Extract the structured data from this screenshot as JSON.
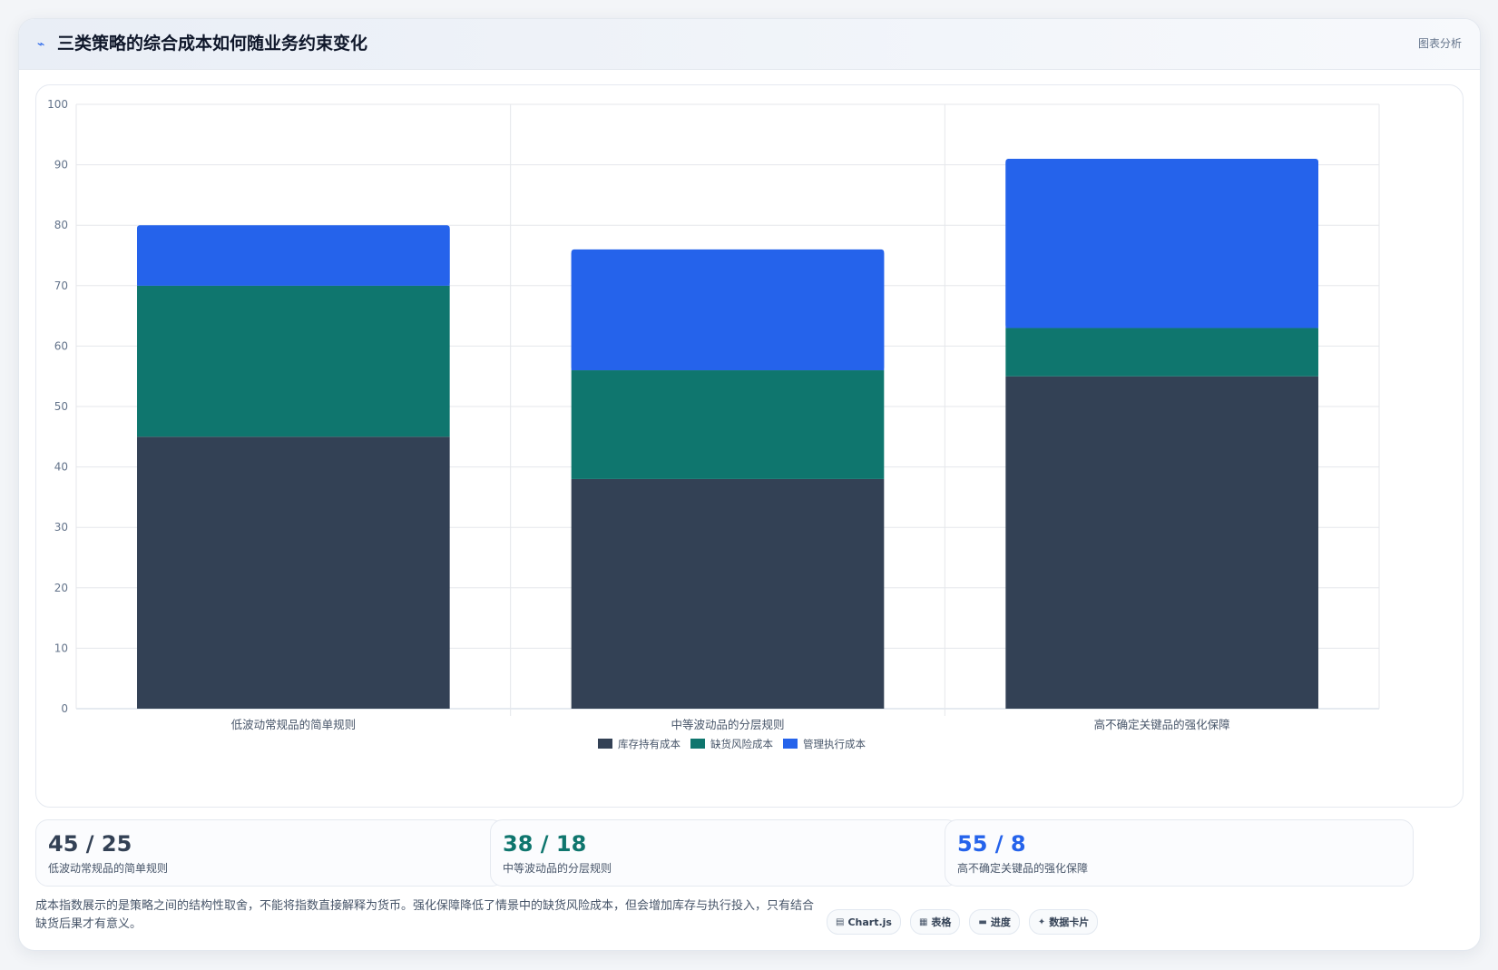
{
  "header": {
    "title": "三类策略的综合成本如何随业务约束变化",
    "tag": "图表分析",
    "icon": "trend-line-icon"
  },
  "chart_data": {
    "type": "bar",
    "stacked": true,
    "categories": [
      "低波动常规品的简单规则",
      "中等波动品的分层规则",
      "高不确定关键品的强化保障"
    ],
    "series": [
      {
        "name": "库存持有成本",
        "values": [
          45,
          38,
          55
        ],
        "color": "#334155"
      },
      {
        "name": "缺货风险成本",
        "values": [
          25,
          18,
          8
        ],
        "color": "#0f766e"
      },
      {
        "name": "管理执行成本",
        "values": [
          10,
          20,
          28
        ],
        "color": "#2563eb"
      }
    ],
    "ylim": [
      0,
      100
    ],
    "yticks": [
      "0",
      "10",
      "20",
      "30",
      "40",
      "50",
      "60",
      "70",
      "80",
      "90",
      "100"
    ],
    "grid": true,
    "legend": "bottom",
    "title": "",
    "xlabel": "",
    "ylabel": ""
  },
  "stats": [
    {
      "value": "45 / 25",
      "label": "低波动常规品的简单规则",
      "color": "#334155"
    },
    {
      "value": "38 / 18",
      "label": "中等波动品的分层规则",
      "color": "#0f766e"
    },
    {
      "value": "55 / 8",
      "label": "高不确定关键品的强化保障",
      "color": "#2563eb"
    }
  ],
  "note": "成本指数展示的是策略之间的结构性取舍，不能将指数直接解释为货币。强化保障降低了情景中的缺货风险成本，但会增加库存与执行投入，只有结合缺货后果才有意义。",
  "pills": [
    {
      "label": "Chart.js",
      "icon": "chart-icon"
    },
    {
      "label": "表格",
      "icon": "table-icon"
    },
    {
      "label": "进度",
      "icon": "progress-icon"
    },
    {
      "label": "数据卡片",
      "icon": "sparkle-icon"
    }
  ]
}
